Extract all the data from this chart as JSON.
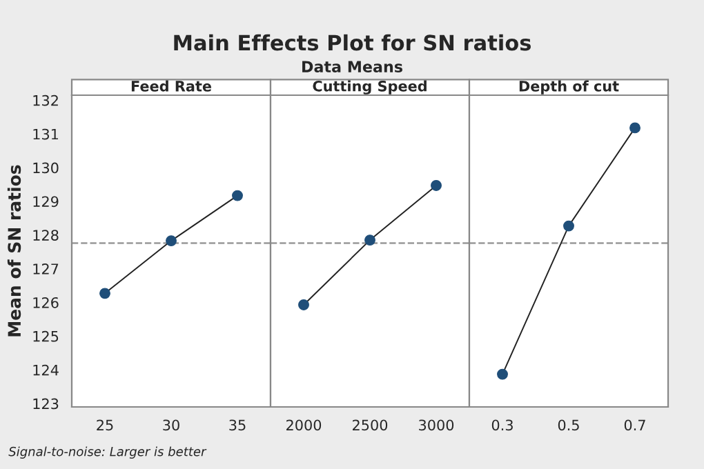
{
  "chart_data": [
    {
      "type": "line",
      "title": "Feed Rate",
      "ylabel": "Mean of SN ratios",
      "annotations": [
        "Main Effects Plot for SN ratios",
        "Data Means",
        "Signal-to-noise: Larger is better"
      ],
      "categories": [
        "25",
        "30",
        "35"
      ],
      "series": [
        {
          "color": "#1f4e79",
          "values": [
            126.27,
            127.83,
            129.17
          ]
        }
      ],
      "ylim": [
        122.9,
        132.15
      ],
      "yticks": [
        123,
        124,
        125,
        126,
        127,
        128,
        129,
        130,
        131,
        132
      ],
      "marker": "circle",
      "line_style": "solid",
      "ref_lines": [
        {
          "axis": "y",
          "value": 127.76,
          "color": "#999999",
          "line_style": "dashed"
        }
      ]
    },
    {
      "type": "line",
      "title": "Cutting Speed",
      "categories": [
        "2000",
        "2500",
        "3000"
      ],
      "series": [
        {
          "color": "#1f4e79",
          "values": [
            125.93,
            127.85,
            129.47
          ]
        }
      ],
      "ylim": [
        122.9,
        132.15
      ],
      "tick_labels": "x",
      "marker": "circle",
      "line_style": "solid",
      "ref_lines": [
        {
          "axis": "y",
          "value": 127.76,
          "color": "#999999",
          "line_style": "dashed"
        }
      ]
    },
    {
      "type": "line",
      "title": "Depth of cut",
      "categories": [
        "0.3",
        "0.5",
        "0.7"
      ],
      "series": [
        {
          "color": "#1f4e79",
          "values": [
            123.87,
            128.27,
            131.18
          ]
        }
      ],
      "ylim": [
        122.9,
        132.15
      ],
      "tick_labels": "x",
      "marker": "circle",
      "line_style": "solid",
      "ref_lines": [
        {
          "axis": "y",
          "value": 127.76,
          "color": "#999999",
          "line_style": "dashed"
        }
      ]
    }
  ]
}
